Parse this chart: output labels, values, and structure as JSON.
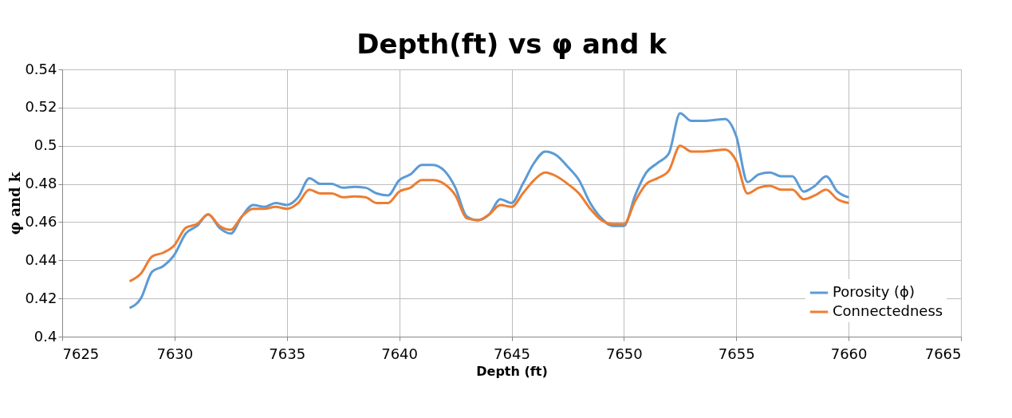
{
  "chart_data": {
    "type": "line",
    "title": "Depth(ft) vs φ and k",
    "xlabel": "Depth (ft)",
    "ylabel": "φ and k",
    "x": [
      7628,
      7628.5,
      7629,
      7629.5,
      7630,
      7630.5,
      7631,
      7631.5,
      7632,
      7632.5,
      7633,
      7633.5,
      7634,
      7634.5,
      7635,
      7635.5,
      7636,
      7636.5,
      7637,
      7637.5,
      7638,
      7638.5,
      7639,
      7639.5,
      7640,
      7640.5,
      7641,
      7641.5,
      7642,
      7642.5,
      7643,
      7643.5,
      7644,
      7644.5,
      7645,
      7645.5,
      7646,
      7646.5,
      7647,
      7647.5,
      7648,
      7648.5,
      7649,
      7649.5,
      7650,
      7650.5,
      7651,
      7651.5,
      7652,
      7652.5,
      7653,
      7653.5,
      7654,
      7654.5,
      7655,
      7655.5,
      7656,
      7656.5,
      7657,
      7657.5,
      7658,
      7658.5,
      7659,
      7659.5,
      7660
    ],
    "series": [
      {
        "name": "Porosity (ϕ)",
        "color": "#5b9bd5",
        "values": [
          0.415,
          0.42,
          0.434,
          0.437,
          0.443,
          0.454,
          0.458,
          0.464,
          0.457,
          0.454,
          0.463,
          0.469,
          0.468,
          0.47,
          0.469,
          0.473,
          0.483,
          0.48,
          0.48,
          0.478,
          0.4785,
          0.478,
          0.475,
          0.474,
          0.482,
          0.485,
          0.49,
          0.49,
          0.487,
          0.478,
          0.463,
          0.461,
          0.464,
          0.472,
          0.47,
          0.48,
          0.491,
          0.497,
          0.495,
          0.489,
          0.482,
          0.47,
          0.462,
          0.458,
          0.458,
          0.474,
          0.486,
          0.491,
          0.496,
          0.517,
          0.513,
          0.513,
          0.5135,
          0.514,
          0.505,
          0.481,
          0.485,
          0.486,
          0.484,
          0.484,
          0.476,
          0.479,
          0.484,
          0.476,
          0.473
        ]
      },
      {
        "name": "Connectedness",
        "color": "#ed7d31",
        "values": [
          0.429,
          0.433,
          0.442,
          0.444,
          0.448,
          0.457,
          0.459,
          0.464,
          0.458,
          0.456,
          0.463,
          0.467,
          0.467,
          0.468,
          0.467,
          0.47,
          0.477,
          0.475,
          0.475,
          0.473,
          0.4735,
          0.473,
          0.47,
          0.47,
          0.476,
          0.478,
          0.482,
          0.482,
          0.48,
          0.474,
          0.462,
          0.461,
          0.464,
          0.469,
          0.468,
          0.475,
          0.482,
          0.486,
          0.484,
          0.48,
          0.475,
          0.467,
          0.461,
          0.459,
          0.459,
          0.471,
          0.48,
          0.483,
          0.487,
          0.5,
          0.497,
          0.497,
          0.4975,
          0.498,
          0.492,
          0.475,
          0.478,
          0.479,
          0.477,
          0.477,
          0.472,
          0.474,
          0.477,
          0.472,
          0.47
        ]
      }
    ],
    "xlim": [
      7625,
      7665
    ],
    "xticks": [
      7625,
      7630,
      7635,
      7640,
      7645,
      7650,
      7655,
      7660,
      7665
    ],
    "ylim": [
      0.4,
      0.54
    ],
    "yticks": [
      0.4,
      0.42,
      0.44,
      0.46,
      0.48,
      0.5,
      0.52,
      0.54
    ],
    "grid": true,
    "legend": "bottom right",
    "line_style": "solid",
    "marker": "none"
  }
}
